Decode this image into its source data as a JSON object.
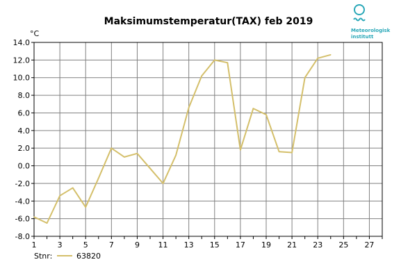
{
  "chart_data": {
    "type": "line",
    "title": "Maksimumstemperatur(TAX) feb 2019",
    "xlabel": "",
    "ylabel": "°C",
    "xlim": [
      1,
      28
    ],
    "ylim": [
      -8,
      14
    ],
    "x_ticks": [
      1,
      3,
      5,
      7,
      9,
      11,
      13,
      15,
      17,
      19,
      21,
      23,
      25,
      27
    ],
    "x_gridlines": [
      1,
      3,
      5,
      7,
      9,
      11,
      13,
      15,
      17,
      19,
      21,
      23,
      25,
      27
    ],
    "y_ticks": [
      14.0,
      12.0,
      10.0,
      8.0,
      6.0,
      4.0,
      2.0,
      0.0,
      -2.0,
      -4.0,
      -6.0,
      -8.0
    ],
    "y_tick_labels": [
      "14.0",
      "12.0",
      "10.0",
      "8.0",
      "6.0",
      "4.0",
      "2.0",
      "0.0",
      "-2.0",
      "-4.0",
      "-6.0",
      "-8.0"
    ],
    "grid": true,
    "legend_position": "bottom-left",
    "legend_prefix": "Stnr:",
    "series": [
      {
        "name": "63820",
        "color": "#d4bf6a",
        "x": [
          1,
          2,
          3,
          4,
          5,
          6,
          7,
          8,
          9,
          10,
          11,
          12,
          13,
          14,
          15,
          16,
          17,
          18,
          19,
          20,
          21,
          22,
          23,
          24
        ],
        "values": [
          -5.8,
          -6.5,
          -3.4,
          -2.5,
          -4.7,
          -1.4,
          2.0,
          1.0,
          1.4,
          -0.3,
          -2.0,
          1.2,
          6.6,
          10.2,
          12.0,
          11.7,
          1.8,
          6.5,
          5.8,
          1.6,
          1.5,
          10.0,
          12.2,
          12.6
        ]
      }
    ]
  },
  "logo": {
    "text_line1": "Meteorologisk",
    "text_line2": "institutt",
    "color": "#2aa8b8",
    "icon": "met-logo-icon"
  }
}
